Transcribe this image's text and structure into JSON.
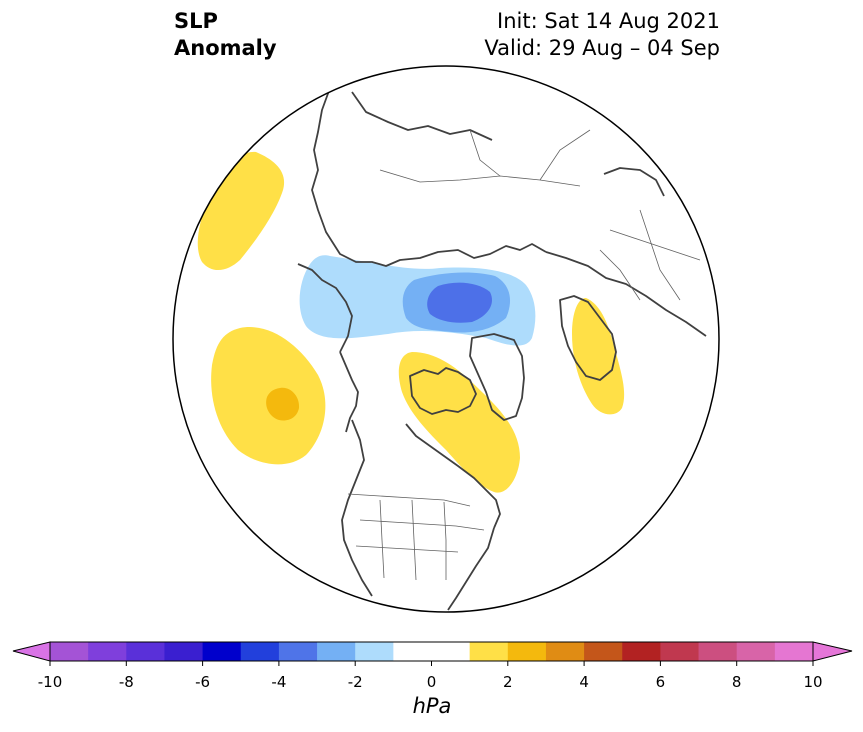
{
  "title": {
    "variable_line1": "SLP",
    "variable_line2": "Anomaly",
    "init_text": "Init: Sat 14 Aug 2021",
    "valid_text": "Valid: 29 Aug – 04 Sep"
  },
  "map": {
    "projection": "north-polar-stereographic",
    "region": "Northern Hemisphere / North America",
    "background_color": "#ffffff",
    "coastline_color": "#404040",
    "features": [
      {
        "name": "anomaly-gulf-of-alaska",
        "sign": "positive",
        "max_hpa": 3,
        "color": "#ffe047"
      },
      {
        "name": "anomaly-hudson-bay",
        "sign": "positive",
        "max_hpa": 2,
        "color": "#ffe047"
      },
      {
        "name": "anomaly-scandinavia",
        "sign": "positive",
        "max_hpa": 2,
        "color": "#ffe047"
      },
      {
        "name": "anomaly-east-asia",
        "sign": "positive",
        "max_hpa": 2,
        "color": "#ffe047"
      },
      {
        "name": "anomaly-arctic-low",
        "sign": "negative",
        "min_hpa": -5,
        "color": "#4d70e8"
      }
    ]
  },
  "colorbar": {
    "unit": "hPa",
    "ticks": [
      "-10",
      "-8",
      "-6",
      "-4",
      "-2",
      "0",
      "2",
      "4",
      "6",
      "8",
      "10"
    ],
    "colors": [
      "#a453d6",
      "#7f3fdc",
      "#5a30d9",
      "#3a1fd0",
      "#0000cc",
      "#2240dc",
      "#4f74e8",
      "#74b0f4",
      "#aedcfc",
      "#ffffff",
      "#ffffff",
      "#ffe047",
      "#f4b90d",
      "#e08c14",
      "#c4561a",
      "#b22222",
      "#c0384f",
      "#cc4f80",
      "#d864a8",
      "#e576d2"
    ],
    "under_color": "#d973e6",
    "over_color": "#e576d8"
  }
}
